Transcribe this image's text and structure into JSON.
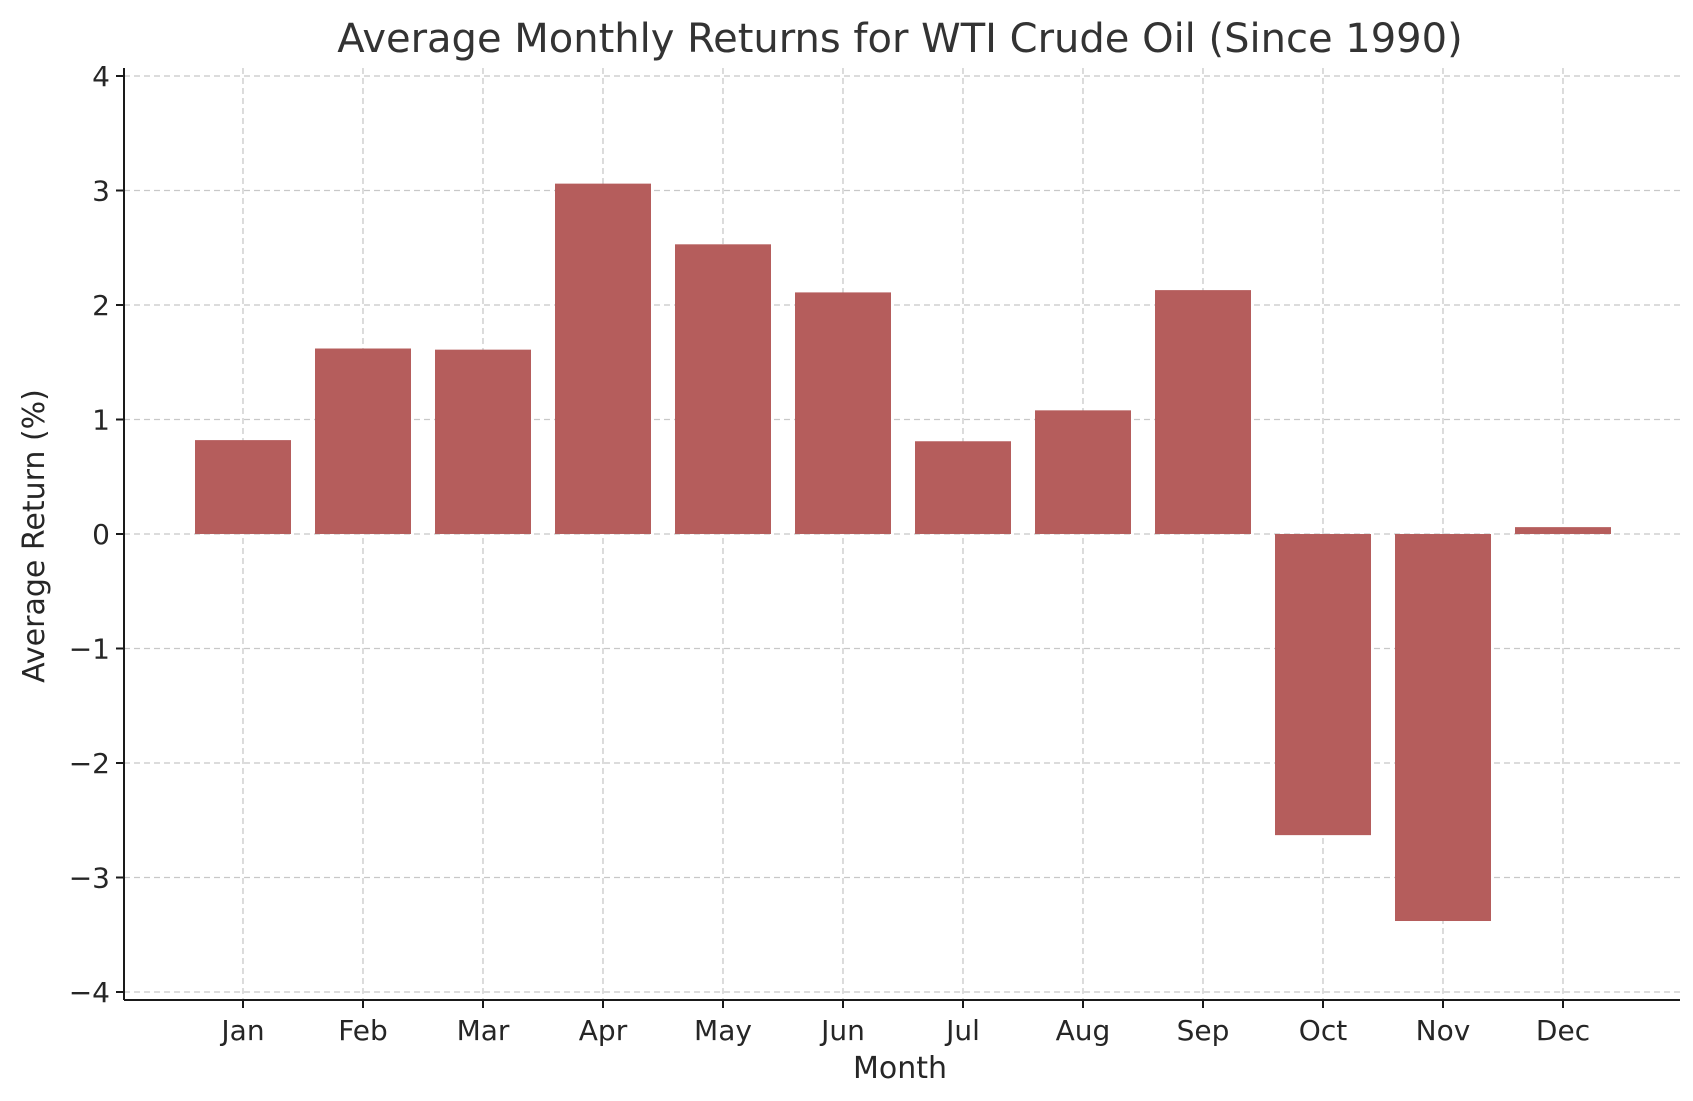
{
  "chart_data": {
    "type": "bar",
    "title": "Average Monthly Returns for WTI Crude Oil (Since 1990)",
    "xlabel": "Month",
    "ylabel": "Average Return (%)",
    "categories": [
      "Jan",
      "Feb",
      "Mar",
      "Apr",
      "May",
      "Jun",
      "Jul",
      "Aug",
      "Sep",
      "Oct",
      "Nov",
      "Dec"
    ],
    "values": [
      0.82,
      1.62,
      1.61,
      3.06,
      2.53,
      2.11,
      0.81,
      1.08,
      2.13,
      -2.63,
      -3.38,
      0.06
    ],
    "ylim": [
      -4,
      4
    ],
    "yticks": [
      4,
      3,
      2,
      1,
      0,
      -1,
      -2,
      -3,
      -4
    ],
    "ytick_labels": [
      "4",
      "3",
      "2",
      "1",
      "0",
      "−1",
      "−2",
      "−3",
      "−4"
    ],
    "grid": true,
    "bar_color": "#b55d5c"
  }
}
